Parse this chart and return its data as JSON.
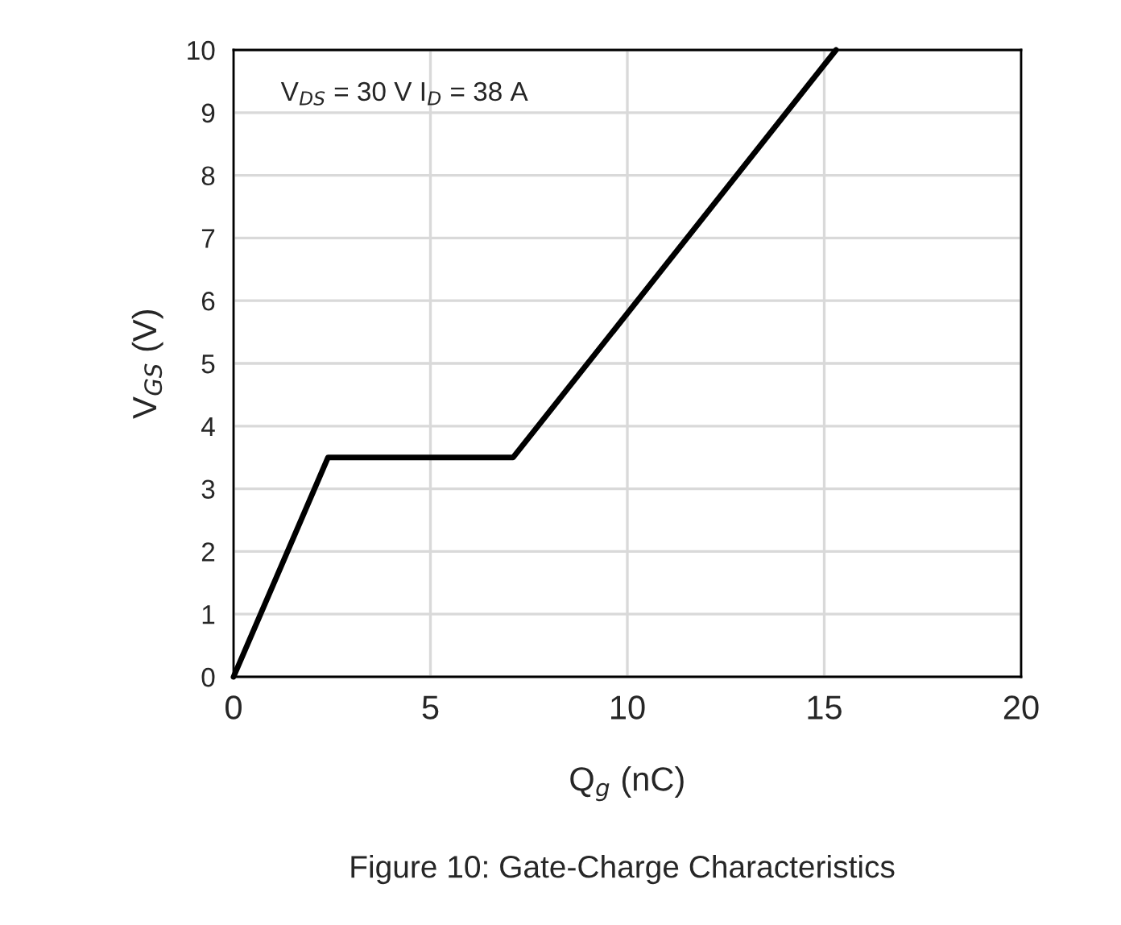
{
  "chart_data": {
    "type": "line",
    "xlabel": "Q$_{g}$ (nC)",
    "ylabel": "V$_{GS}$ (V)",
    "series": [
      {
        "color": "#000000",
        "x": [
          0,
          2.4,
          7.1,
          15.3
        ],
        "values": [
          0,
          3.5,
          3.5,
          10
        ]
      }
    ],
    "xlim": [
      0,
      20
    ],
    "xticks": [
      0,
      5,
      10,
      15,
      20
    ],
    "ylim": [
      0,
      10
    ],
    "yticks": [
      0,
      1,
      2,
      3,
      4,
      5,
      6,
      7,
      8,
      9,
      10
    ],
    "grid": true,
    "marker": "none",
    "line_style": "solid",
    "annotations": [
      "V$_{DS}$ = 30 V I$_{D}$ = 38 A",
      "Figure 10: Gate-Charge Characteristics"
    ]
  }
}
